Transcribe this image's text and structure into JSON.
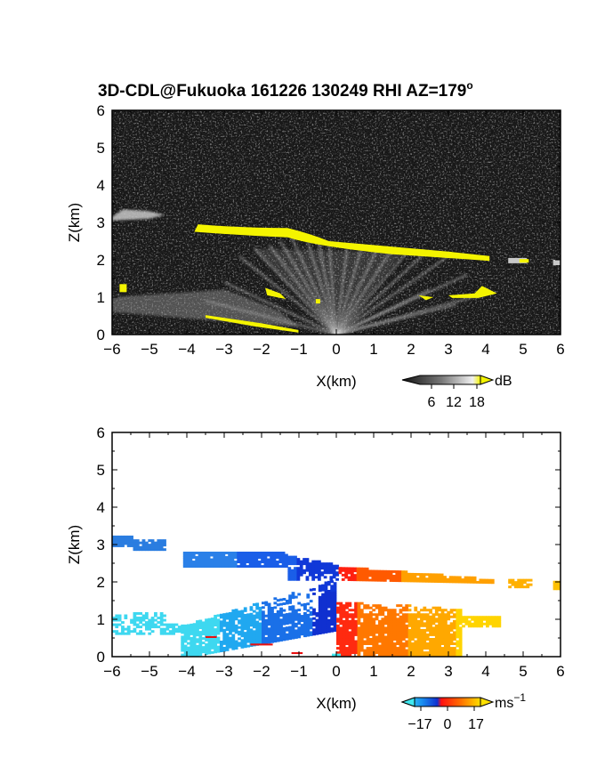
{
  "title_main": "3D-CDL@Fukuoka 161226 130249 RHI AZ=179",
  "title_degree": "o",
  "chart_data": [
    {
      "type": "heatmap",
      "panel": "reflectivity",
      "title": "3D-CDL@Fukuoka 161226 130249 RHI AZ=179°",
      "xlabel": "X(km)",
      "ylabel": "Z(km)",
      "xlim": [
        -6,
        6
      ],
      "ylim": [
        0,
        6
      ],
      "x_ticks": [
        "−6",
        "−5",
        "−4",
        "−3",
        "−2",
        "−1",
        "0",
        "1",
        "2",
        "3",
        "4",
        "5",
        "6"
      ],
      "y_ticks": [
        "0",
        "1",
        "2",
        "3",
        "4",
        "5",
        "6"
      ],
      "colorbar": {
        "unit": "dB",
        "ticks": [
          "6",
          "12",
          "18"
        ],
        "range": [
          0,
          20
        ]
      },
      "colors": {
        "background": "#141414",
        "noise": "#3a3a3a",
        "echo": "#f4f400",
        "weak_echo": "#c8c8c8"
      },
      "features": [
        {
          "name": "cloud layer",
          "x": [
            -4,
            4.1
          ],
          "z": [
            2.9,
            2.05
          ],
          "value": "yellow"
        },
        {
          "name": "upper fragment",
          "x": [
            -6,
            -4.6
          ],
          "z": [
            3.25,
            3.2
          ],
          "value": "grey"
        },
        {
          "name": "right fragment",
          "x": [
            4.6,
            6
          ],
          "z": [
            2.0,
            1.95
          ],
          "value": "grey-yellow"
        },
        {
          "name": "low echo",
          "x": [
            -3.5,
            4.3
          ],
          "z": [
            0.1,
            1.3
          ],
          "value": "yellow"
        }
      ]
    },
    {
      "type": "heatmap",
      "panel": "doppler velocity",
      "xlabel": "X(km)",
      "ylabel": "Z(km)",
      "xlim": [
        -6,
        6
      ],
      "ylim": [
        0,
        6
      ],
      "x_ticks": [
        "−6",
        "−5",
        "−4",
        "−3",
        "−2",
        "−1",
        "0",
        "1",
        "2",
        "3",
        "4",
        "5",
        "6"
      ],
      "y_ticks": [
        "0",
        "1",
        "2",
        "3",
        "4",
        "5",
        "6"
      ],
      "colorbar": {
        "unit": "ms",
        "unit_exp": "−1",
        "ticks": [
          "−17",
          "0",
          "17"
        ],
        "range": [
          -20,
          20
        ]
      },
      "colors": {
        "negative_far": "#2a7de0",
        "negative_near": "#1030d0",
        "zero_neg": "#0040ff",
        "zero_pos": "#ff2010",
        "positive_near": "#ff6000",
        "positive_far": "#ffd000",
        "low_negative": "#40e0f0"
      },
      "features": [
        {
          "name": "cloud layer",
          "x": [
            -6,
            4.2
          ],
          "z": [
            3.3,
            2.1
          ],
          "velocity": "negative left / positive right"
        },
        {
          "name": "lower echo",
          "x": [
            -6,
            4.4
          ],
          "z": [
            0.05,
            1.3
          ],
          "velocity": "negative left / positive right"
        }
      ]
    }
  ]
}
